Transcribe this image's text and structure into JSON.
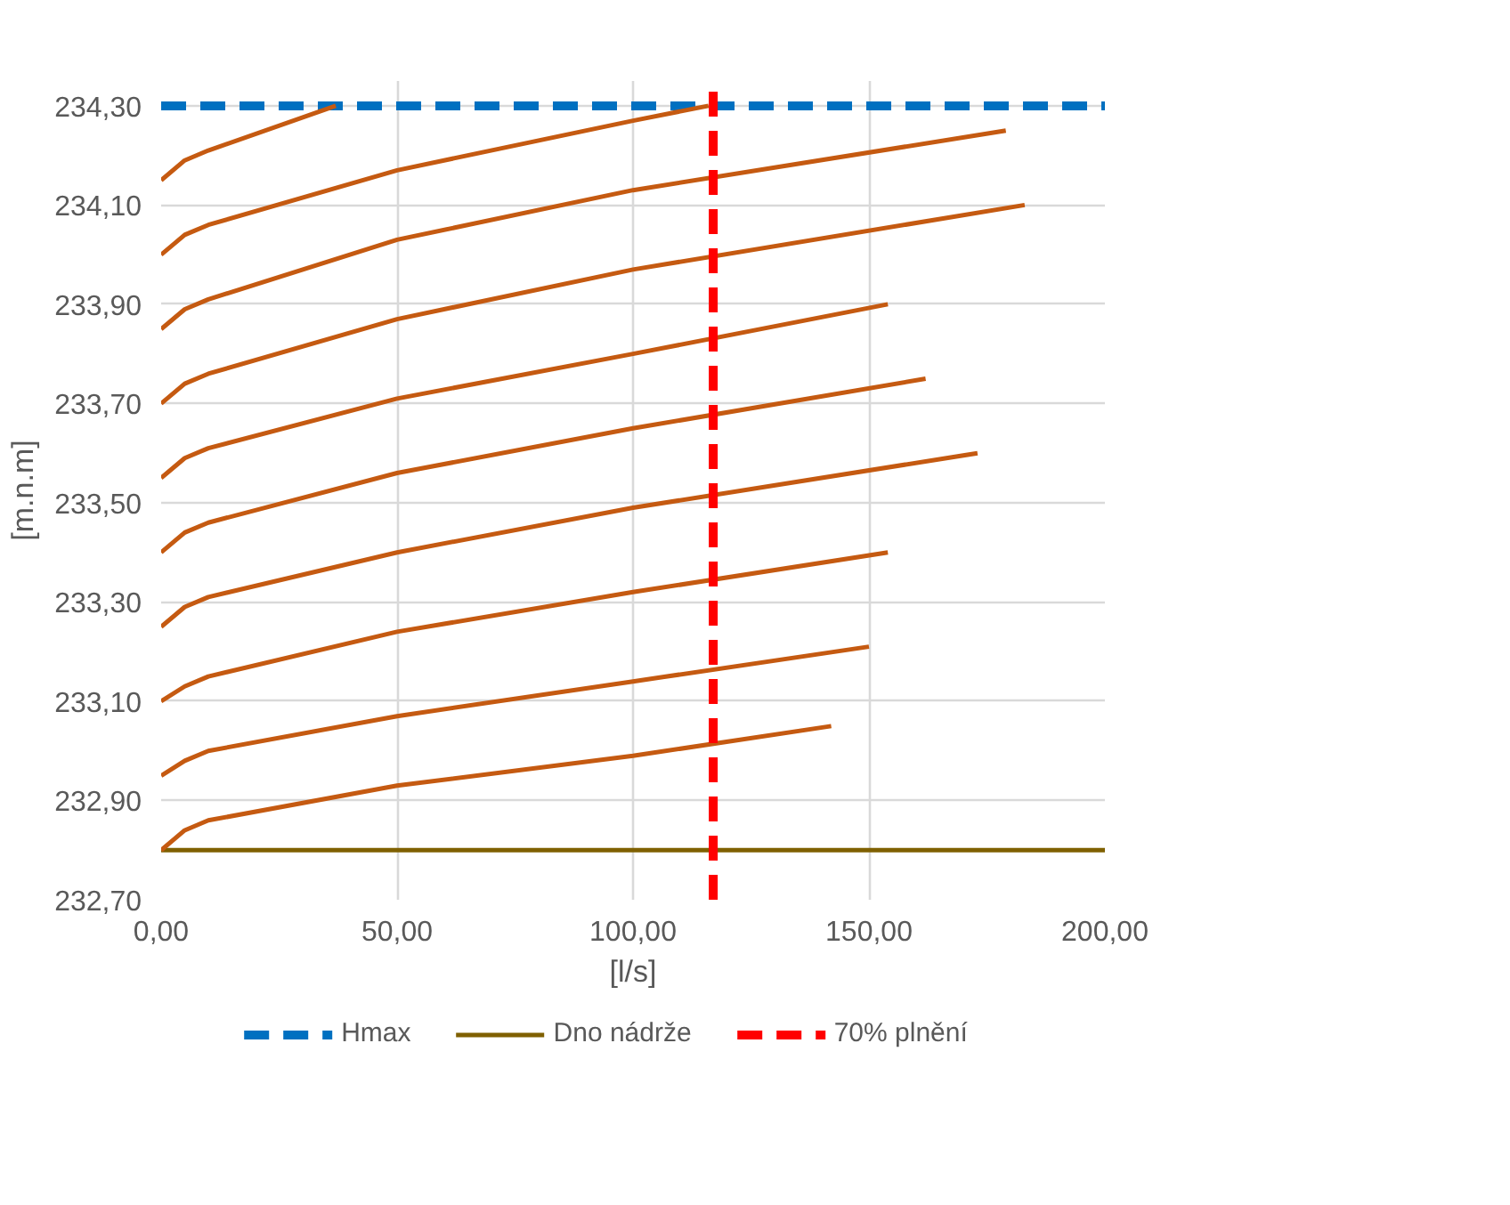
{
  "chart_data": {
    "type": "line",
    "xlabel": "[l/s]",
    "ylabel": "[m.n.m]",
    "xlim": [
      0,
      200
    ],
    "ylim": [
      232.7,
      234.35
    ],
    "xticks": [
      {
        "value": 0,
        "label": "0,00"
      },
      {
        "value": 50,
        "label": "50,00"
      },
      {
        "value": 100,
        "label": "100,00"
      },
      {
        "value": 150,
        "label": "150,00"
      },
      {
        "value": 200,
        "label": "200,00"
      }
    ],
    "yticks": [
      {
        "value": 232.7,
        "label": "232,70"
      },
      {
        "value": 232.9,
        "label": "232,90"
      },
      {
        "value": 233.1,
        "label": "233,10"
      },
      {
        "value": 233.3,
        "label": "233,30"
      },
      {
        "value": 233.5,
        "label": "233,50"
      },
      {
        "value": 233.7,
        "label": "233,70"
      },
      {
        "value": 233.9,
        "label": "233,90"
      },
      {
        "value": 234.1,
        "label": "234,10"
      },
      {
        "value": 234.3,
        "label": "234,30"
      }
    ],
    "grid": true,
    "legend": "bottom",
    "line_style": "solid",
    "marker": "none",
    "series": [
      {
        "name": "Hmax",
        "color": "#0070c0",
        "line_style": "dashed",
        "x": [
          0,
          200
        ],
        "values": [
          234.3,
          234.3
        ]
      },
      {
        "name": "Dno nádrže",
        "color": "#7f6000",
        "x": [
          0,
          200
        ],
        "values": [
          232.8,
          232.8
        ]
      },
      {
        "color": "#c55a11",
        "x": [
          0,
          5,
          10,
          50,
          100,
          142
        ],
        "values": [
          232.8,
          232.84,
          232.86,
          232.93,
          232.99,
          233.05
        ]
      },
      {
        "color": "#c55a11",
        "x": [
          0,
          5,
          10,
          50,
          100,
          150
        ],
        "values": [
          232.95,
          232.98,
          233.0,
          233.07,
          233.14,
          233.21
        ]
      },
      {
        "color": "#c55a11",
        "x": [
          0,
          5,
          10,
          50,
          100,
          154
        ],
        "values": [
          233.1,
          233.13,
          233.15,
          233.24,
          233.32,
          233.4
        ]
      },
      {
        "color": "#c55a11",
        "x": [
          0,
          5,
          10,
          50,
          100,
          173
        ],
        "values": [
          233.25,
          233.29,
          233.31,
          233.4,
          233.49,
          233.6
        ]
      },
      {
        "color": "#c55a11",
        "x": [
          0,
          5,
          10,
          50,
          100,
          162
        ],
        "values": [
          233.4,
          233.44,
          233.46,
          233.56,
          233.65,
          233.75
        ]
      },
      {
        "color": "#c55a11",
        "x": [
          0,
          5,
          10,
          50,
          100,
          154
        ],
        "values": [
          233.55,
          233.59,
          233.61,
          233.71,
          233.8,
          233.9
        ]
      },
      {
        "color": "#c55a11",
        "x": [
          0,
          5,
          10,
          50,
          100,
          183
        ],
        "values": [
          233.7,
          233.74,
          233.76,
          233.87,
          233.97,
          234.1
        ]
      },
      {
        "color": "#c55a11",
        "x": [
          0,
          5,
          10,
          50,
          100,
          179
        ],
        "values": [
          233.85,
          233.89,
          233.91,
          234.03,
          234.13,
          234.25
        ]
      },
      {
        "color": "#c55a11",
        "x": [
          0,
          5,
          10,
          50,
          100,
          116
        ],
        "values": [
          234.0,
          234.04,
          234.06,
          234.17,
          234.27,
          234.3
        ]
      },
      {
        "color": "#c55a11",
        "x": [
          0,
          5,
          10,
          37
        ],
        "values": [
          234.15,
          234.19,
          234.21,
          234.3
        ]
      }
    ],
    "ref_lines": [
      {
        "axis": "x",
        "value": 117,
        "label": "70% plnění",
        "color": "#ff0000",
        "line_style": "dashed"
      }
    ]
  }
}
